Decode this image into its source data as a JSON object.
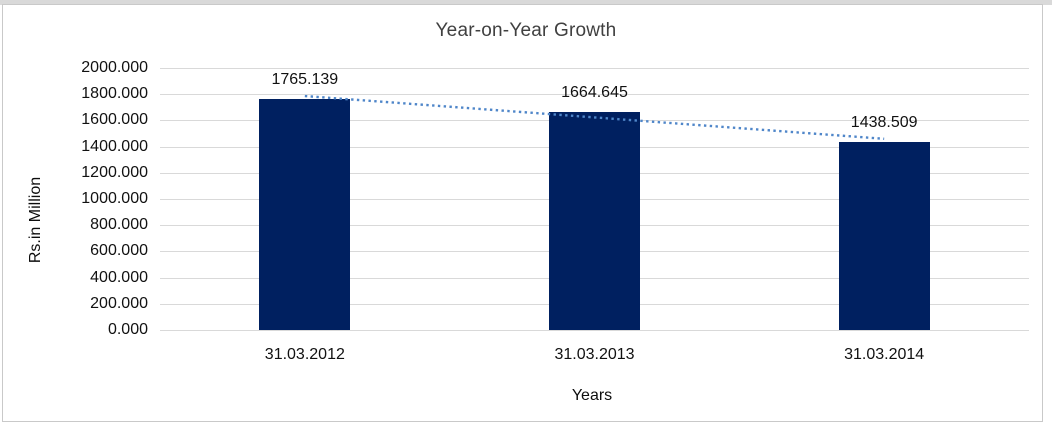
{
  "chart_data": {
    "type": "bar",
    "title": "Year-on-Year Growth",
    "xlabel": "Years",
    "ylabel": "Rs.in Million",
    "categories": [
      "31.03.2012",
      "31.03.2013",
      "31.03.2014"
    ],
    "values": [
      1765.139,
      1664.645,
      1438.509
    ],
    "data_labels": [
      "1765.139",
      "1664.645",
      "1438.509"
    ],
    "yticks": [
      "0.000",
      "200.000",
      "400.000",
      "600.000",
      "800.000",
      "1000.000",
      "1200.000",
      "1400.000",
      "1600.000",
      "1800.000",
      "2000.000"
    ],
    "ylim": [
      0,
      2000
    ],
    "grid": true,
    "legend": "none",
    "bar_color": "#002060",
    "gridline_color": "#d9d9d9",
    "trendline": {
      "type": "linear",
      "style": "dotted",
      "color": "#4f86c9"
    }
  }
}
